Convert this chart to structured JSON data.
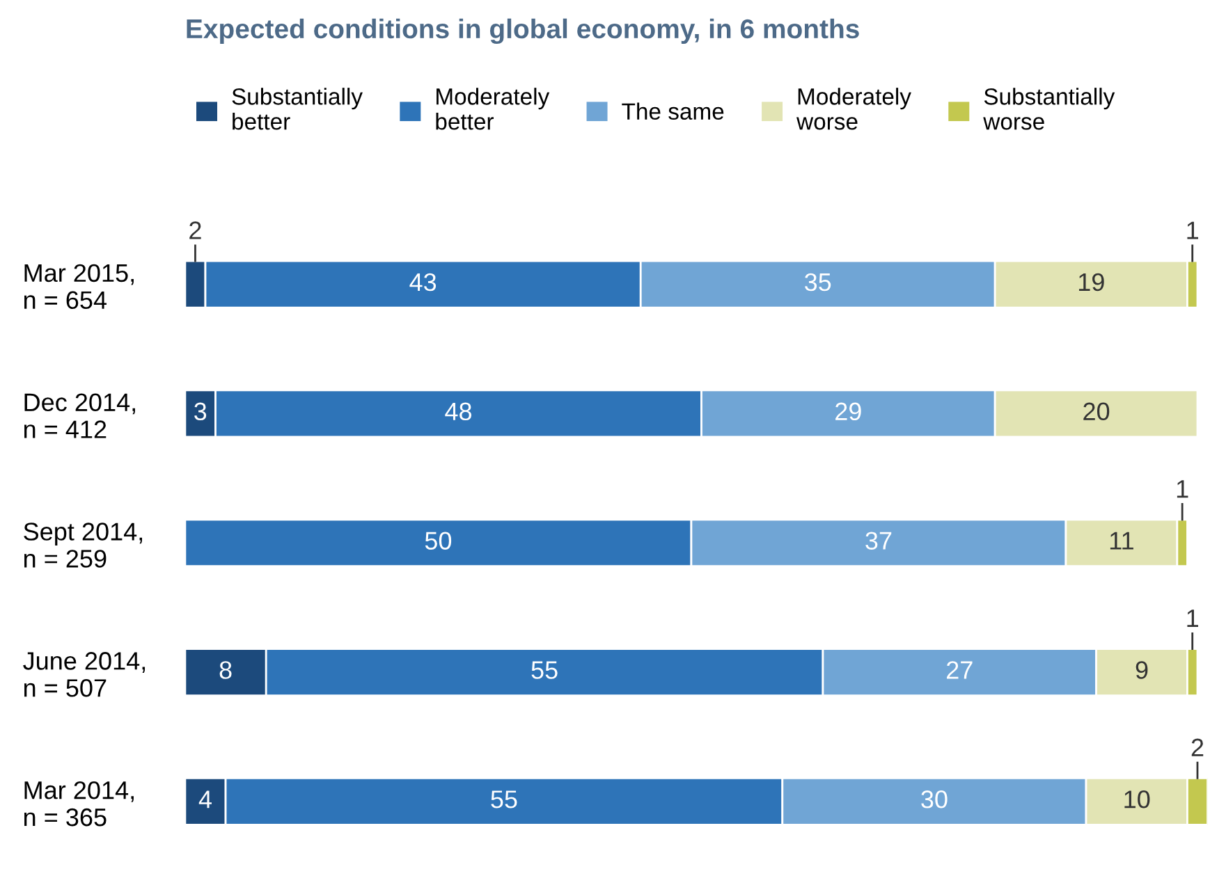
{
  "chart_data": {
    "type": "bar",
    "orientation": "horizontal",
    "stacked": true,
    "data_labels": true,
    "legend": "top",
    "grid": false,
    "title": "Expected conditions in global economy, in 6 months",
    "categories": [
      "Mar 2015,\nn = 654",
      "Dec 2014,\nn = 412",
      "Sept 2014,\nn = 259",
      "June 2014,\nn = 507",
      "Mar 2014,\nn = 365"
    ],
    "series": [
      {
        "name": "Substantially\nbetter",
        "color": "#1c4a7c",
        "values": [
          2,
          3,
          null,
          8,
          4
        ]
      },
      {
        "name": "Moderately\nbetter",
        "color": "#2e74b8",
        "values": [
          43,
          48,
          50,
          55,
          55
        ]
      },
      {
        "name": "The same",
        "color": "#70a5d5",
        "values": [
          35,
          29,
          37,
          27,
          30
        ]
      },
      {
        "name": "Moderately\nworse",
        "color": "#e2e4b4",
        "values": [
          19,
          20,
          11,
          9,
          10
        ]
      },
      {
        "name": "Substantially\nworse",
        "color": "#c3c84f",
        "values": [
          1,
          null,
          1,
          1,
          2
        ]
      }
    ]
  }
}
